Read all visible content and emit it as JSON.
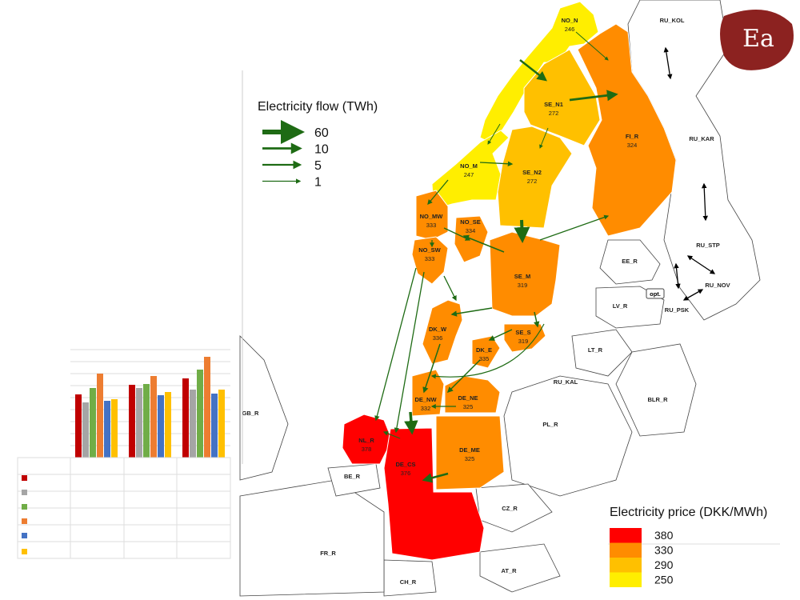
{
  "logo": "Ea",
  "flow_legend": {
    "title": "Electricity flow (TWh)",
    "items": [
      60,
      10,
      5,
      1
    ]
  },
  "price_legend": {
    "title": "Electricity price (DKK/MWh)",
    "items": [
      {
        "value": 380,
        "color": "#ff0000"
      },
      {
        "value": 330,
        "color": "#ff8c00"
      },
      {
        "value": 290,
        "color": "#ffc000"
      },
      {
        "value": 250,
        "color": "#ffee00"
      }
    ]
  },
  "priced_regions": [
    {
      "name": "NO_N",
      "price": 246
    },
    {
      "name": "SE_N1",
      "price": 272
    },
    {
      "name": "FI_R",
      "price": 324
    },
    {
      "name": "NO_M",
      "price": 247
    },
    {
      "name": "SE_N2",
      "price": 272
    },
    {
      "name": "NO_MW",
      "price": 333
    },
    {
      "name": "NO_SE",
      "price": 334
    },
    {
      "name": "NO_SW",
      "price": 333
    },
    {
      "name": "SE_M",
      "price": 319
    },
    {
      "name": "DK_W",
      "price": 336
    },
    {
      "name": "SE_S",
      "price": 319
    },
    {
      "name": "DK_E",
      "price": 335
    },
    {
      "name": "DE_NW",
      "price": 332
    },
    {
      "name": "DE_NE",
      "price": 325
    },
    {
      "name": "NL_R",
      "price": 378
    },
    {
      "name": "DE_ME",
      "price": 325
    },
    {
      "name": "DE_CS",
      "price": 376
    }
  ],
  "other_regions": [
    "RU_KOL",
    "RU_KAR",
    "RU_STP",
    "RU_NOV",
    "RU_PSK",
    "EE_R",
    "LV_R",
    "LT_R",
    "RU_KAL",
    "BLR_R",
    "PL_R",
    "CZ_R",
    "AT_R",
    "CH_R",
    "FR_R",
    "BE_R",
    "GB_R"
  ],
  "note": "opt."
}
